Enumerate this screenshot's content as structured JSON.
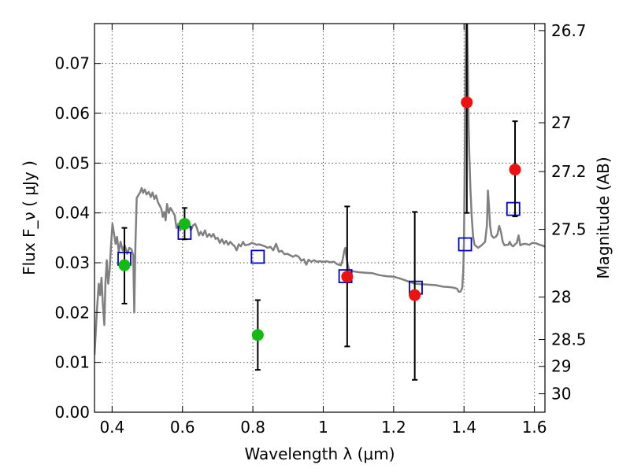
{
  "chart_data": {
    "type": "scatter",
    "xlabel": "Wavelength  λ (μm)",
    "ylabel": "Flux  F_ν  ( μJy )",
    "ylabel_right": "Magnitude (AB)",
    "xlim": [
      0.35,
      1.63
    ],
    "ylim": [
      0.0,
      0.078
    ],
    "grid": true,
    "x_ticks": [
      0.4,
      0.6,
      0.8,
      1.0,
      1.2,
      1.4,
      1.6
    ],
    "x_tick_labels": [
      "0.4",
      "0.6",
      "0.8",
      "1",
      "1.2",
      "1.4",
      "1.6"
    ],
    "y_ticks": [
      0.0,
      0.01,
      0.02,
      0.03,
      0.04,
      0.05,
      0.06,
      0.07
    ],
    "y_tick_labels": [
      "0.00",
      "0.01",
      "0.02",
      "0.03",
      "0.04",
      "0.05",
      "0.06",
      "0.07"
    ],
    "right_ticks": [
      {
        "label": "26.7",
        "flux": 0.0766
      },
      {
        "label": "27",
        "flux": 0.0581
      },
      {
        "label": "27.2",
        "flux": 0.0483
      },
      {
        "label": "27.5",
        "flux": 0.0367
      },
      {
        "label": "28",
        "flux": 0.0231
      },
      {
        "label": "28.5",
        "flux": 0.0146
      },
      {
        "label": "29",
        "flux": 0.0092
      },
      {
        "label": "30",
        "flux": 0.0037
      }
    ],
    "series": [
      {
        "marker": "circle",
        "color": "#11bb11",
        "points": [
          {
            "x": 0.435,
            "y": 0.0295,
            "ylo": 0.0218,
            "yhi": 0.037
          },
          {
            "x": 0.606,
            "y": 0.0378,
            "ylo": 0.0347,
            "yhi": 0.041
          },
          {
            "x": 0.814,
            "y": 0.0155,
            "ylo": 0.0085,
            "yhi": 0.0225
          }
        ]
      },
      {
        "marker": "circle",
        "color": "#ee1111",
        "points": [
          {
            "x": 1.068,
            "y": 0.0272,
            "ylo": 0.0132,
            "yhi": 0.0413
          },
          {
            "x": 1.26,
            "y": 0.0235,
            "ylo": 0.0065,
            "yhi": 0.0402
          },
          {
            "x": 1.408,
            "y": 0.0622,
            "ylo": 0.04,
            "yhi": 0.08
          },
          {
            "x": 1.545,
            "y": 0.0487,
            "ylo": 0.0393,
            "yhi": 0.0584
          }
        ]
      },
      {
        "marker": "open-square",
        "color": "#0000cc",
        "points": [
          {
            "x": 0.435,
            "y": 0.0308
          },
          {
            "x": 0.606,
            "y": 0.036
          },
          {
            "x": 0.814,
            "y": 0.0312
          },
          {
            "x": 1.063,
            "y": 0.0273
          },
          {
            "x": 1.263,
            "y": 0.025
          },
          {
            "x": 1.403,
            "y": 0.0337
          },
          {
            "x": 1.54,
            "y": 0.0408
          }
        ]
      },
      {
        "marker": "line",
        "color": "#808080",
        "points": [
          [
            0.35,
            0.0115
          ],
          [
            0.357,
            0.0205
          ],
          [
            0.362,
            0.0258
          ],
          [
            0.366,
            0.0235
          ],
          [
            0.37,
            0.027
          ],
          [
            0.374,
            0.0215
          ],
          [
            0.378,
            0.0175
          ],
          [
            0.381,
            0.026
          ],
          [
            0.385,
            0.0305
          ],
          [
            0.389,
            0.0258
          ],
          [
            0.393,
            0.0285
          ],
          [
            0.397,
            0.0335
          ],
          [
            0.401,
            0.0378
          ],
          [
            0.405,
            0.036
          ],
          [
            0.41,
            0.0338
          ],
          [
            0.414,
            0.0352
          ],
          [
            0.419,
            0.0322
          ],
          [
            0.424,
            0.0342
          ],
          [
            0.43,
            0.0325
          ],
          [
            0.436,
            0.0335
          ],
          [
            0.443,
            0.0318
          ],
          [
            0.449,
            0.033
          ],
          [
            0.455,
            0.0327
          ],
          [
            0.46,
            0.0315
          ],
          [
            0.463,
            0.02
          ],
          [
            0.466,
            0.0325
          ],
          [
            0.47,
            0.043
          ],
          [
            0.476,
            0.0437
          ],
          [
            0.48,
            0.0442
          ],
          [
            0.484,
            0.045
          ],
          [
            0.488,
            0.044
          ],
          [
            0.493,
            0.0447
          ],
          [
            0.498,
            0.0437
          ],
          [
            0.504,
            0.0442
          ],
          [
            0.51,
            0.0432
          ],
          [
            0.515,
            0.0441
          ],
          [
            0.52,
            0.0428
          ],
          [
            0.525,
            0.0435
          ],
          [
            0.53,
            0.0422
          ],
          [
            0.535,
            0.0415
          ],
          [
            0.54,
            0.0408
          ],
          [
            0.544,
            0.0392
          ],
          [
            0.548,
            0.0402
          ],
          [
            0.552,
            0.0385
          ],
          [
            0.556,
            0.0418
          ],
          [
            0.561,
            0.04
          ],
          [
            0.566,
            0.041
          ],
          [
            0.572,
            0.0403
          ],
          [
            0.578,
            0.0395
          ],
          [
            0.583,
            0.037
          ],
          [
            0.588,
            0.0378
          ],
          [
            0.594,
            0.0365
          ],
          [
            0.6,
            0.0377
          ],
          [
            0.606,
            0.0368
          ],
          [
            0.612,
            0.0376
          ],
          [
            0.618,
            0.038
          ],
          [
            0.624,
            0.0365
          ],
          [
            0.63,
            0.0375
          ],
          [
            0.636,
            0.0378
          ],
          [
            0.641,
            0.037
          ],
          [
            0.647,
            0.0355
          ],
          [
            0.652,
            0.0362
          ],
          [
            0.658,
            0.0355
          ],
          [
            0.664,
            0.0365
          ],
          [
            0.67,
            0.0352
          ],
          [
            0.676,
            0.0358
          ],
          [
            0.682,
            0.0352
          ],
          [
            0.688,
            0.0358
          ],
          [
            0.694,
            0.0348
          ],
          [
            0.7,
            0.035
          ],
          [
            0.706,
            0.034
          ],
          [
            0.712,
            0.0347
          ],
          [
            0.718,
            0.0338
          ],
          [
            0.724,
            0.0344
          ],
          [
            0.73,
            0.0336
          ],
          [
            0.736,
            0.0342
          ],
          [
            0.742,
            0.0337
          ],
          [
            0.748,
            0.0333
          ],
          [
            0.754,
            0.0325
          ],
          [
            0.76,
            0.0337
          ],
          [
            0.766,
            0.0333
          ],
          [
            0.772,
            0.0342
          ],
          [
            0.778,
            0.0335
          ],
          [
            0.784,
            0.0336
          ],
          [
            0.79,
            0.0337
          ],
          [
            0.797,
            0.034
          ],
          [
            0.804,
            0.0338
          ],
          [
            0.811,
            0.0336
          ],
          [
            0.818,
            0.0337
          ],
          [
            0.826,
            0.0335
          ],
          [
            0.834,
            0.0333
          ],
          [
            0.842,
            0.033
          ],
          [
            0.85,
            0.0332
          ],
          [
            0.858,
            0.0325
          ],
          [
            0.866,
            0.0338
          ],
          [
            0.874,
            0.0322
          ],
          [
            0.882,
            0.0324
          ],
          [
            0.89,
            0.0317
          ],
          [
            0.898,
            0.0318
          ],
          [
            0.906,
            0.0315
          ],
          [
            0.914,
            0.0312
          ],
          [
            0.922,
            0.0315
          ],
          [
            0.93,
            0.0312
          ],
          [
            0.938,
            0.0304
          ],
          [
            0.945,
            0.0307
          ],
          [
            0.952,
            0.0296
          ],
          [
            0.958,
            0.0306
          ],
          [
            0.966,
            0.0302
          ],
          [
            0.974,
            0.0305
          ],
          [
            0.982,
            0.0302
          ],
          [
            0.99,
            0.0303
          ],
          [
            1.0,
            0.0302
          ],
          [
            1.01,
            0.0303
          ],
          [
            1.02,
            0.0301
          ],
          [
            1.03,
            0.0302
          ],
          [
            1.04,
            0.0297
          ],
          [
            1.05,
            0.0295
          ],
          [
            1.055,
            0.0305
          ],
          [
            1.06,
            0.0325
          ],
          [
            1.063,
            0.033
          ],
          [
            1.066,
            0.031
          ],
          [
            1.07,
            0.0295
          ],
          [
            1.075,
            0.0282
          ],
          [
            1.085,
            0.0283
          ],
          [
            1.1,
            0.0281
          ],
          [
            1.12,
            0.028
          ],
          [
            1.14,
            0.0279
          ],
          [
            1.16,
            0.0275
          ],
          [
            1.18,
            0.0273
          ],
          [
            1.2,
            0.0272
          ],
          [
            1.22,
            0.0268
          ],
          [
            1.24,
            0.0263
          ],
          [
            1.26,
            0.0258
          ],
          [
            1.28,
            0.0257
          ],
          [
            1.3,
            0.0256
          ],
          [
            1.32,
            0.0255
          ],
          [
            1.34,
            0.0252
          ],
          [
            1.36,
            0.0251
          ],
          [
            1.37,
            0.025
          ],
          [
            1.38,
            0.0248
          ],
          [
            1.385,
            0.0242
          ],
          [
            1.39,
            0.0242
          ],
          [
            1.395,
            0.025
          ],
          [
            1.398,
            0.0285
          ],
          [
            1.4,
            0.0345
          ],
          [
            1.402,
            0.05
          ],
          [
            1.404,
            0.068
          ],
          [
            1.406,
            0.078
          ],
          [
            1.409,
            0.078
          ],
          [
            1.411,
            0.07
          ],
          [
            1.413,
            0.058
          ],
          [
            1.415,
            0.052
          ],
          [
            1.418,
            0.045
          ],
          [
            1.422,
            0.039
          ],
          [
            1.426,
            0.0352
          ],
          [
            1.43,
            0.0336
          ],
          [
            1.44,
            0.033
          ],
          [
            1.45,
            0.0335
          ],
          [
            1.46,
            0.0342
          ],
          [
            1.465,
            0.0375
          ],
          [
            1.468,
            0.0445
          ],
          [
            1.471,
            0.0415
          ],
          [
            1.474,
            0.0375
          ],
          [
            1.478,
            0.0355
          ],
          [
            1.484,
            0.035
          ],
          [
            1.49,
            0.0352
          ],
          [
            1.495,
            0.0357
          ],
          [
            1.5,
            0.0374
          ],
          [
            1.505,
            0.0362
          ],
          [
            1.51,
            0.0342
          ],
          [
            1.515,
            0.0335
          ],
          [
            1.52,
            0.0336
          ],
          [
            1.526,
            0.0336
          ],
          [
            1.53,
            0.0342
          ],
          [
            1.535,
            0.0335
          ],
          [
            1.54,
            0.0333
          ],
          [
            1.545,
            0.0337
          ],
          [
            1.55,
            0.034
          ],
          [
            1.555,
            0.0355
          ],
          [
            1.56,
            0.0335
          ],
          [
            1.565,
            0.0337
          ],
          [
            1.575,
            0.0338
          ],
          [
            1.585,
            0.0336
          ],
          [
            1.595,
            0.034
          ],
          [
            1.605,
            0.0339
          ],
          [
            1.615,
            0.0336
          ],
          [
            1.625,
            0.0334
          ],
          [
            1.63,
            0.0332
          ]
        ]
      }
    ]
  }
}
